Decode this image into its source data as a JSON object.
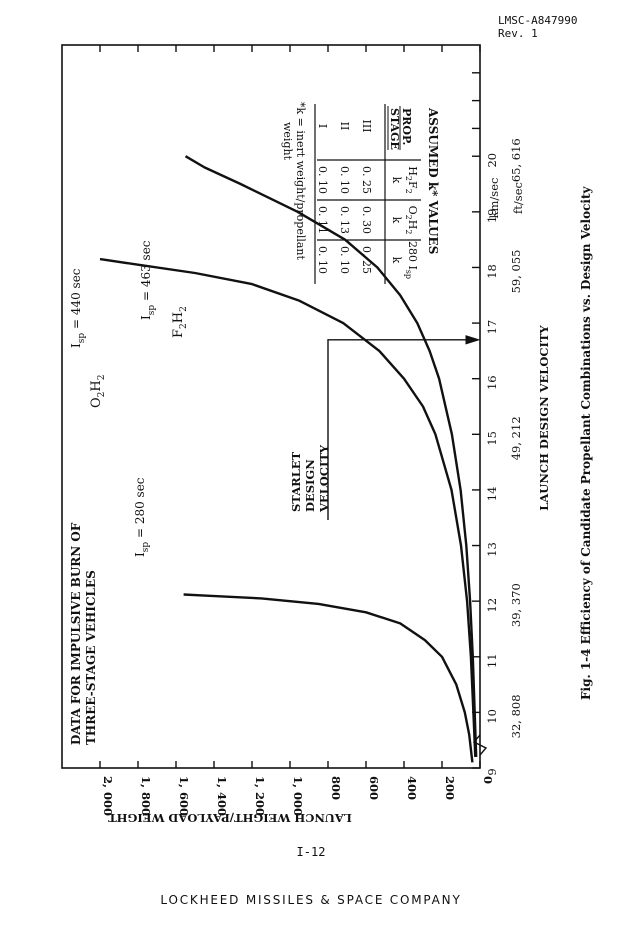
{
  "header": {
    "doc_id": "LMSC-A847990",
    "rev": "Rev. 1"
  },
  "page_number": "I-12",
  "footer": "LOCKHEED MISSILES & SPACE COMPANY",
  "chart_data": {
    "type": "line",
    "caption": "Fig. 1-4  Efficiency of Candidate Propellant Combinations vs. Design Velocity",
    "xlabel": "LAUNCH DESIGN VELOCITY",
    "ylabel": "LAUNCH WEIGHT/PAYLOAD WEIGHT",
    "xunit_km": "km/sec",
    "xunit_ft": "ft/sec",
    "xlim": [
      9,
      22
    ],
    "ylim": [
      0,
      2000
    ],
    "x_ticks": [
      9,
      10,
      11,
      12,
      13,
      14,
      15,
      16,
      17,
      18,
      19,
      20
    ],
    "x_ticks_ft": [
      {
        "x": 10,
        "label": "32, 808"
      },
      {
        "x": 12,
        "label": "39, 370"
      },
      {
        "x": 15,
        "label": "49, 212"
      },
      {
        "x": 18,
        "label": "59, 055"
      },
      {
        "x": 20,
        "label": "65, 616"
      }
    ],
    "y_ticks": [
      0,
      200,
      400,
      600,
      800,
      1000,
      1200,
      1400,
      1600,
      1800,
      2000
    ],
    "y_tick_labels": [
      "0",
      "200",
      "400",
      "600",
      "800",
      "1, 000",
      "1, 200",
      "1, 400",
      "1, 600",
      "1, 800",
      "2, 000"
    ],
    "annotation": "DATA FOR IMPULSIVE BURN OF THREE-STAGE VEHICLES",
    "series": [
      {
        "name": "I_sp = 280 sec",
        "points": [
          [
            9.1,
            40
          ],
          [
            9.6,
            57
          ],
          [
            10,
            80
          ],
          [
            10.5,
            125
          ],
          [
            11,
            200
          ],
          [
            11.3,
            290
          ],
          [
            11.6,
            420
          ],
          [
            11.8,
            600
          ],
          [
            11.95,
            850
          ],
          [
            12.05,
            1150
          ],
          [
            12.1,
            1450
          ],
          [
            12.12,
            1560
          ]
        ]
      },
      {
        "name": "O2H2 I_sp = 440 sec",
        "points": [
          [
            9.2,
            25
          ],
          [
            10,
            35
          ],
          [
            11,
            48
          ],
          [
            12,
            68
          ],
          [
            13,
            100
          ],
          [
            14,
            150
          ],
          [
            15,
            235
          ],
          [
            15.5,
            300
          ],
          [
            16,
            400
          ],
          [
            16.5,
            530
          ],
          [
            17,
            720
          ],
          [
            17.4,
            950
          ],
          [
            17.7,
            1200
          ],
          [
            17.9,
            1500
          ],
          [
            18.05,
            1800
          ],
          [
            18.15,
            2000
          ]
        ]
      },
      {
        "name": "F2H2 I_sp = 463 sec",
        "points": [
          [
            9.2,
            20
          ],
          [
            10,
            28
          ],
          [
            11,
            38
          ],
          [
            12,
            52
          ],
          [
            13,
            72
          ],
          [
            14,
            102
          ],
          [
            15,
            148
          ],
          [
            16,
            215
          ],
          [
            16.5,
            265
          ],
          [
            17,
            330
          ],
          [
            17.5,
            420
          ],
          [
            18,
            540
          ],
          [
            18.5,
            710
          ],
          [
            19,
            960
          ],
          [
            19.5,
            1260
          ],
          [
            19.8,
            1450
          ],
          [
            20,
            1550
          ]
        ]
      }
    ],
    "series_labels": {
      "s280": {
        "isp": "I",
        "sub": "sp",
        "value": "= 280 sec"
      },
      "s440": {
        "isp": "I",
        "sub": "sp",
        "value": "= 440 sec",
        "prop": "O",
        "prop_sub1": "2",
        "prop_mid": "H",
        "prop_sub2": "2"
      },
      "s463": {
        "isp": "I",
        "sub": "sp",
        "value": "= 463 sec",
        "prop": "F",
        "prop_sub1": "2",
        "prop_mid": "H",
        "prop_sub2": "2"
      }
    },
    "design_velocity": {
      "x": 16.7,
      "label_lines": [
        "STARLET",
        "DESIGN",
        "VELOCITY"
      ]
    },
    "k_table": {
      "title": "ASSUMED k* VALUES",
      "head_stage": [
        "PROP.",
        "STAGE"
      ],
      "head_cols": [
        {
          "p": "H",
          "s1": "2",
          "m": "F",
          "s2": "2",
          "k": "k"
        },
        {
          "p": "O",
          "s1": "2",
          "m": "H",
          "s2": "2",
          "k": "k"
        },
        {
          "p": "280 I",
          "s1": "sp",
          "m": "",
          "s2": "",
          "k": "k"
        }
      ],
      "rows": [
        {
          "stage": "III",
          "values": [
            "0. 25",
            "0. 30",
            "0. 25"
          ]
        },
        {
          "stage": "II",
          "values": [
            "0. 10",
            "0. 13",
            "0. 10"
          ]
        },
        {
          "stage": "I",
          "values": [
            "0. 10",
            "0. 11",
            "0. 10"
          ]
        }
      ],
      "footnote": [
        "*k = inert weight/propellant",
        "weight"
      ]
    }
  }
}
